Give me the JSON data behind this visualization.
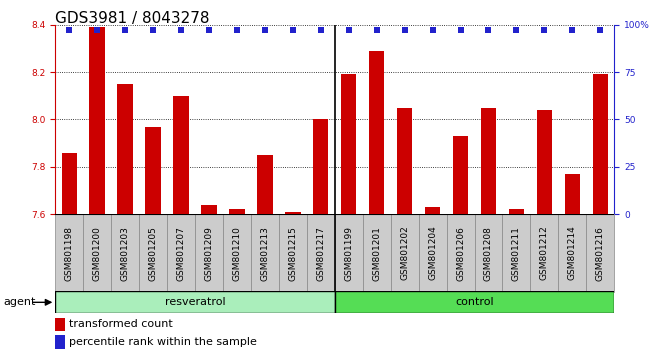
{
  "title": "GDS3981 / 8043278",
  "samples": [
    "GSM801198",
    "GSM801200",
    "GSM801203",
    "GSM801205",
    "GSM801207",
    "GSM801209",
    "GSM801210",
    "GSM801213",
    "GSM801215",
    "GSM801217",
    "GSM801199",
    "GSM801201",
    "GSM801202",
    "GSM801204",
    "GSM801206",
    "GSM801208",
    "GSM801211",
    "GSM801212",
    "GSM801214",
    "GSM801216"
  ],
  "bar_values": [
    7.86,
    8.39,
    8.15,
    7.97,
    8.1,
    7.64,
    7.62,
    7.85,
    7.61,
    8.0,
    8.19,
    8.29,
    8.05,
    7.63,
    7.93,
    8.05,
    7.62,
    8.04,
    7.77,
    8.19
  ],
  "percentile_values": [
    97,
    97,
    97,
    97,
    97,
    97,
    97,
    97,
    97,
    97,
    97,
    97,
    97,
    97,
    97,
    97,
    97,
    97,
    97,
    97
  ],
  "bar_color": "#cc0000",
  "percentile_color": "#2222cc",
  "ylim": [
    7.6,
    8.4
  ],
  "yticks_left": [
    7.6,
    7.8,
    8.0,
    8.2,
    8.4
  ],
  "yticks_right": [
    0,
    25,
    50,
    75,
    100
  ],
  "group_labels": [
    "resveratrol",
    "control"
  ],
  "group_counts": [
    10,
    10
  ],
  "agent_label": "agent",
  "legend_bar_label": "transformed count",
  "legend_dot_label": "percentile rank within the sample",
  "bar_width": 0.55,
  "background_color": "#ffffff",
  "title_fontsize": 11,
  "tick_fontsize": 6.5,
  "label_fontsize": 8
}
